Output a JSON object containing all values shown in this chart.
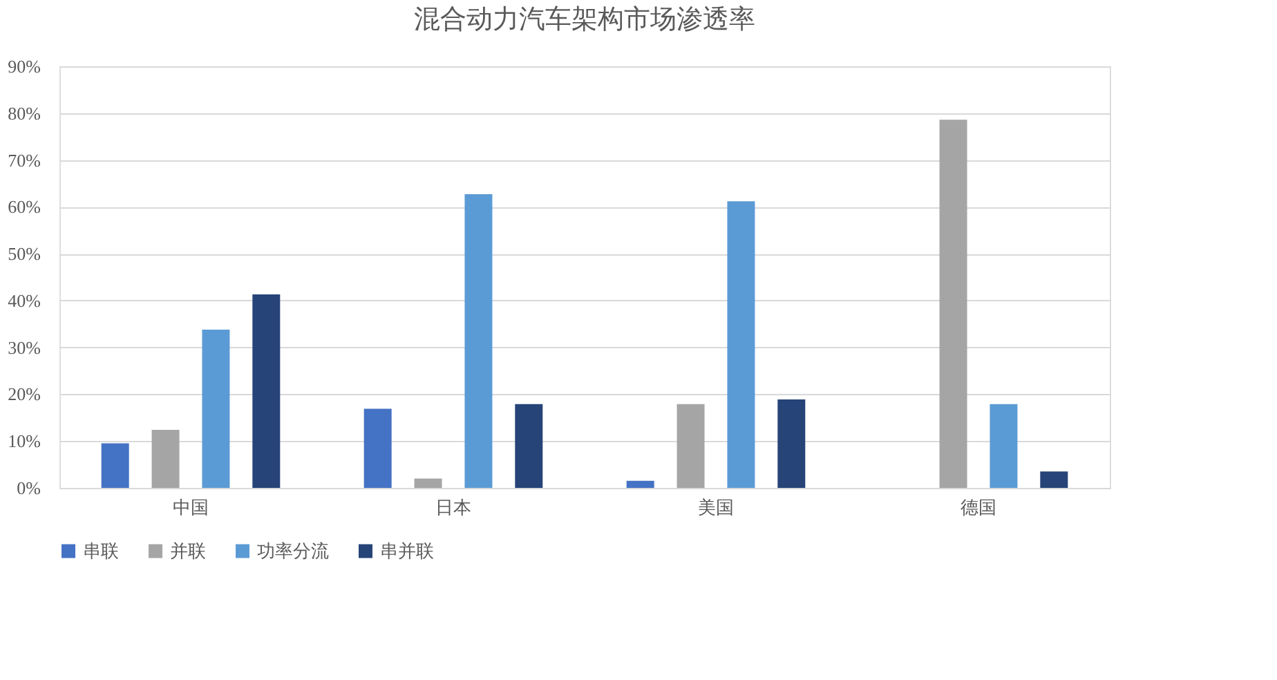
{
  "chart_data": {
    "type": "bar",
    "title": "混合动力汽车架构市场渗透率",
    "categories": [
      "中国",
      "日本",
      "美国",
      "德国"
    ],
    "series": [
      {
        "name": "串联",
        "color": "#4472c4",
        "values": [
          9.5,
          16.9,
          1.5,
          0
        ]
      },
      {
        "name": "并联",
        "color": "#a5a5a5",
        "values": [
          12.4,
          2,
          17.9,
          78.6
        ]
      },
      {
        "name": "功率分流",
        "color": "#5b9bd5",
        "values": [
          33.8,
          62.7,
          61.2,
          17.9
        ]
      },
      {
        "name": "串并联",
        "color": "#264478",
        "values": [
          41.3,
          17.9,
          18.9,
          3.5
        ]
      }
    ],
    "ylim": [
      0,
      90
    ],
    "yticks": [
      {
        "value": 0,
        "label": "0%"
      },
      {
        "value": 10,
        "label": "10%"
      },
      {
        "value": 20,
        "label": "20%"
      },
      {
        "value": 30,
        "label": "30%"
      },
      {
        "value": 40,
        "label": "40%"
      },
      {
        "value": 50,
        "label": "50%"
      },
      {
        "value": 60,
        "label": "60%"
      },
      {
        "value": 70,
        "label": "70%"
      },
      {
        "value": 80,
        "label": "80%"
      },
      {
        "value": 90,
        "label": "90%"
      }
    ],
    "grid": "y",
    "legend": "bottom"
  }
}
